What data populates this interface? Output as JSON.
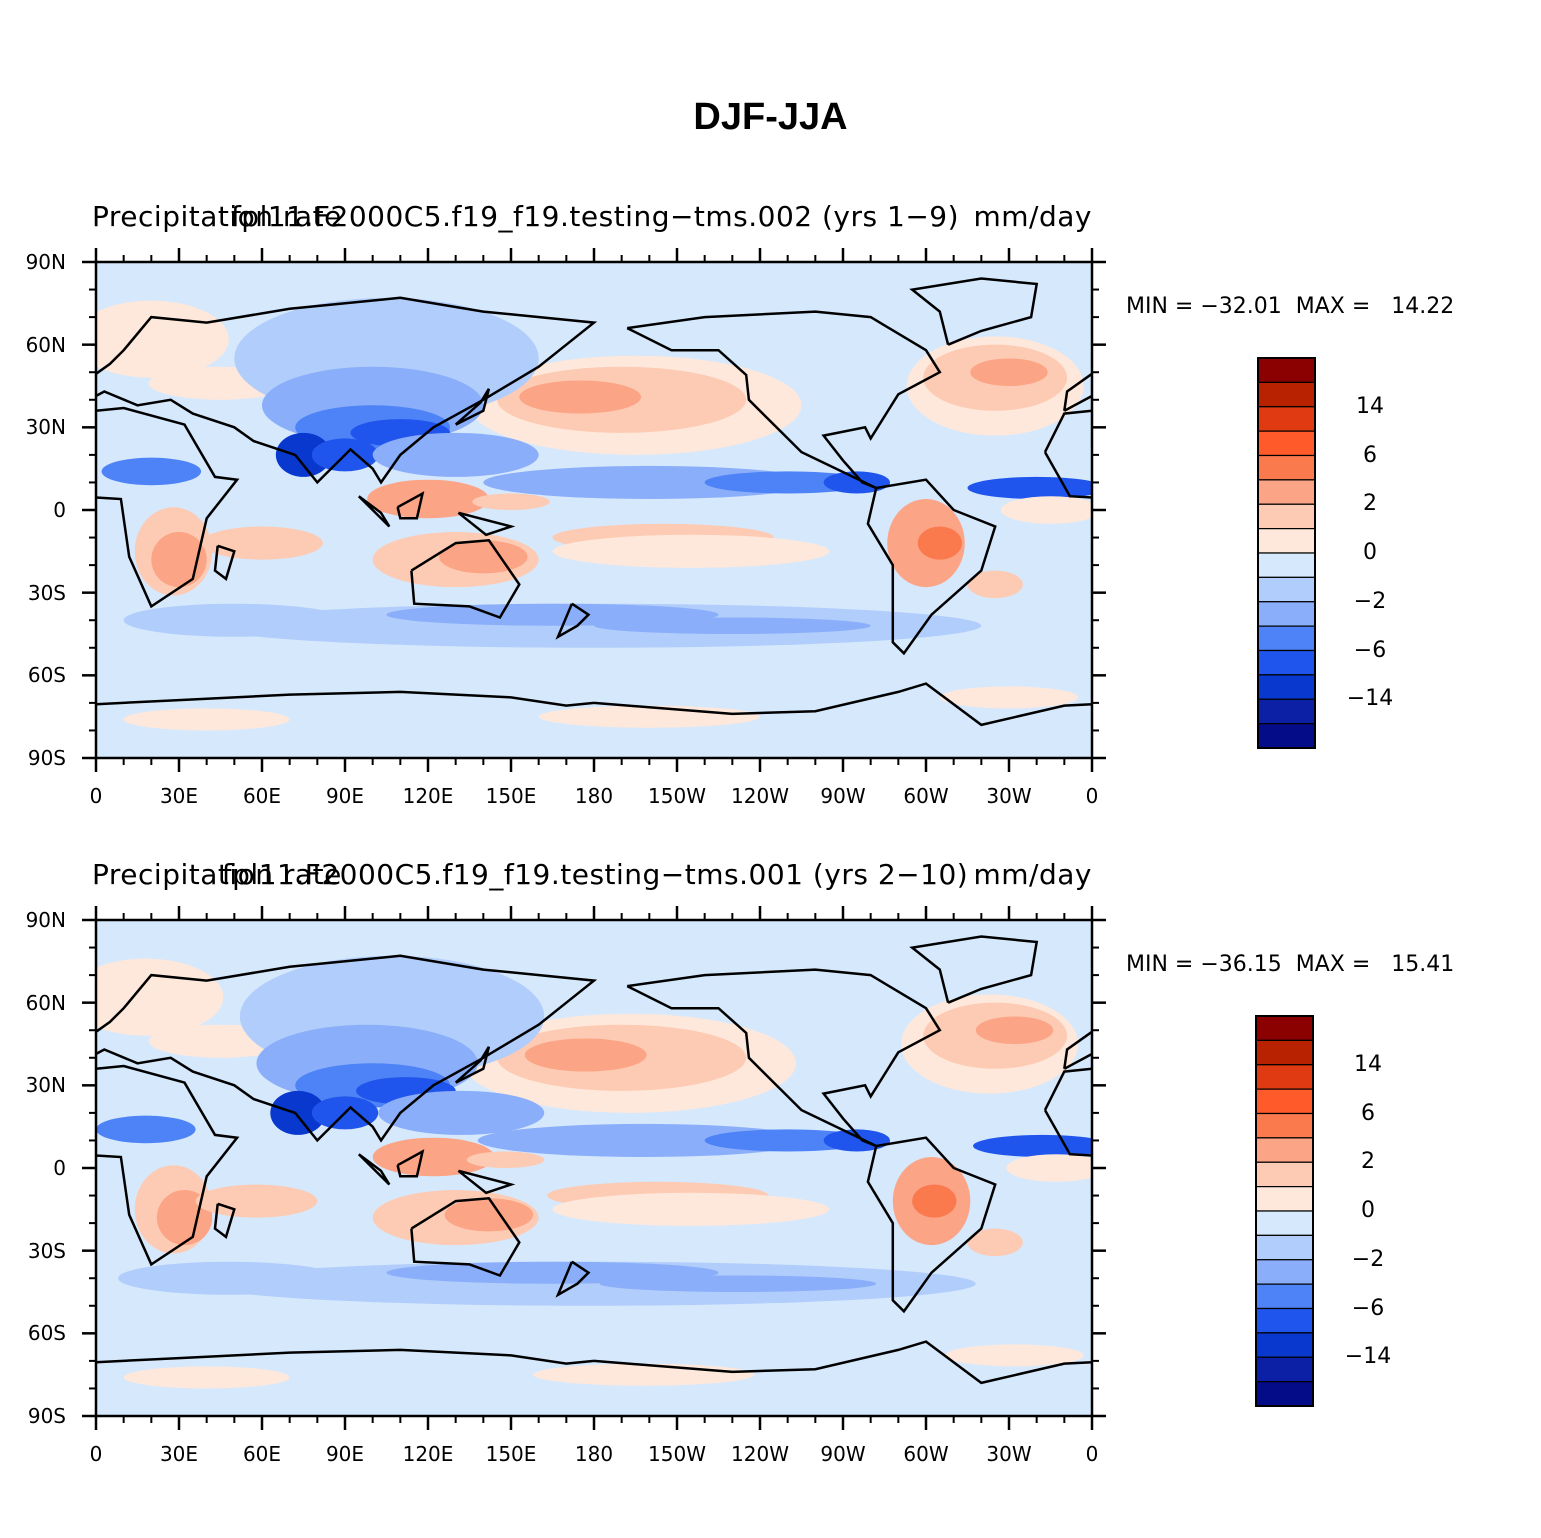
{
  "title": "DJF-JJA",
  "panels": [
    {
      "left_string": "Precipitation rate",
      "center_string": "fpl11.F2000C5.f19_f19.testing-tms.002 (yrs 1-9)",
      "right_string": "mm/day",
      "min_max": "MIN = -32.01  MAX =   14.22"
    },
    {
      "left_string": "Precipitation rate",
      "center_string": "fpl11.F2000C5.f19_f19.testing-tms.001 (yrs 2-10)",
      "right_string": "mm/day",
      "min_max": "MIN = -36.15  MAX =   15.41"
    }
  ],
  "lat_ticks": [
    "90N",
    "60N",
    "30N",
    "0",
    "30S",
    "60S",
    "90S"
  ],
  "lon_ticks": [
    "0",
    "30E",
    "60E",
    "90E",
    "120E",
    "150E",
    "180",
    "150W",
    "120W",
    "90W",
    "60W",
    "30W",
    "0"
  ],
  "colorbar": {
    "labels": [
      "14",
      "6",
      "2",
      "0",
      "-2",
      "-6",
      "-14"
    ],
    "colors": [
      "#8b0000",
      "#b82200",
      "#e03a12",
      "#ff5a2a",
      "#fa7a4e",
      "#fca486",
      "#fdcbb3",
      "#fee8db",
      "#d6e8fc",
      "#b1cdfb",
      "#8aaefa",
      "#4d83f6",
      "#1f55ec",
      "#0838ce",
      "#0b20a4",
      "#050c88"
    ]
  }
}
